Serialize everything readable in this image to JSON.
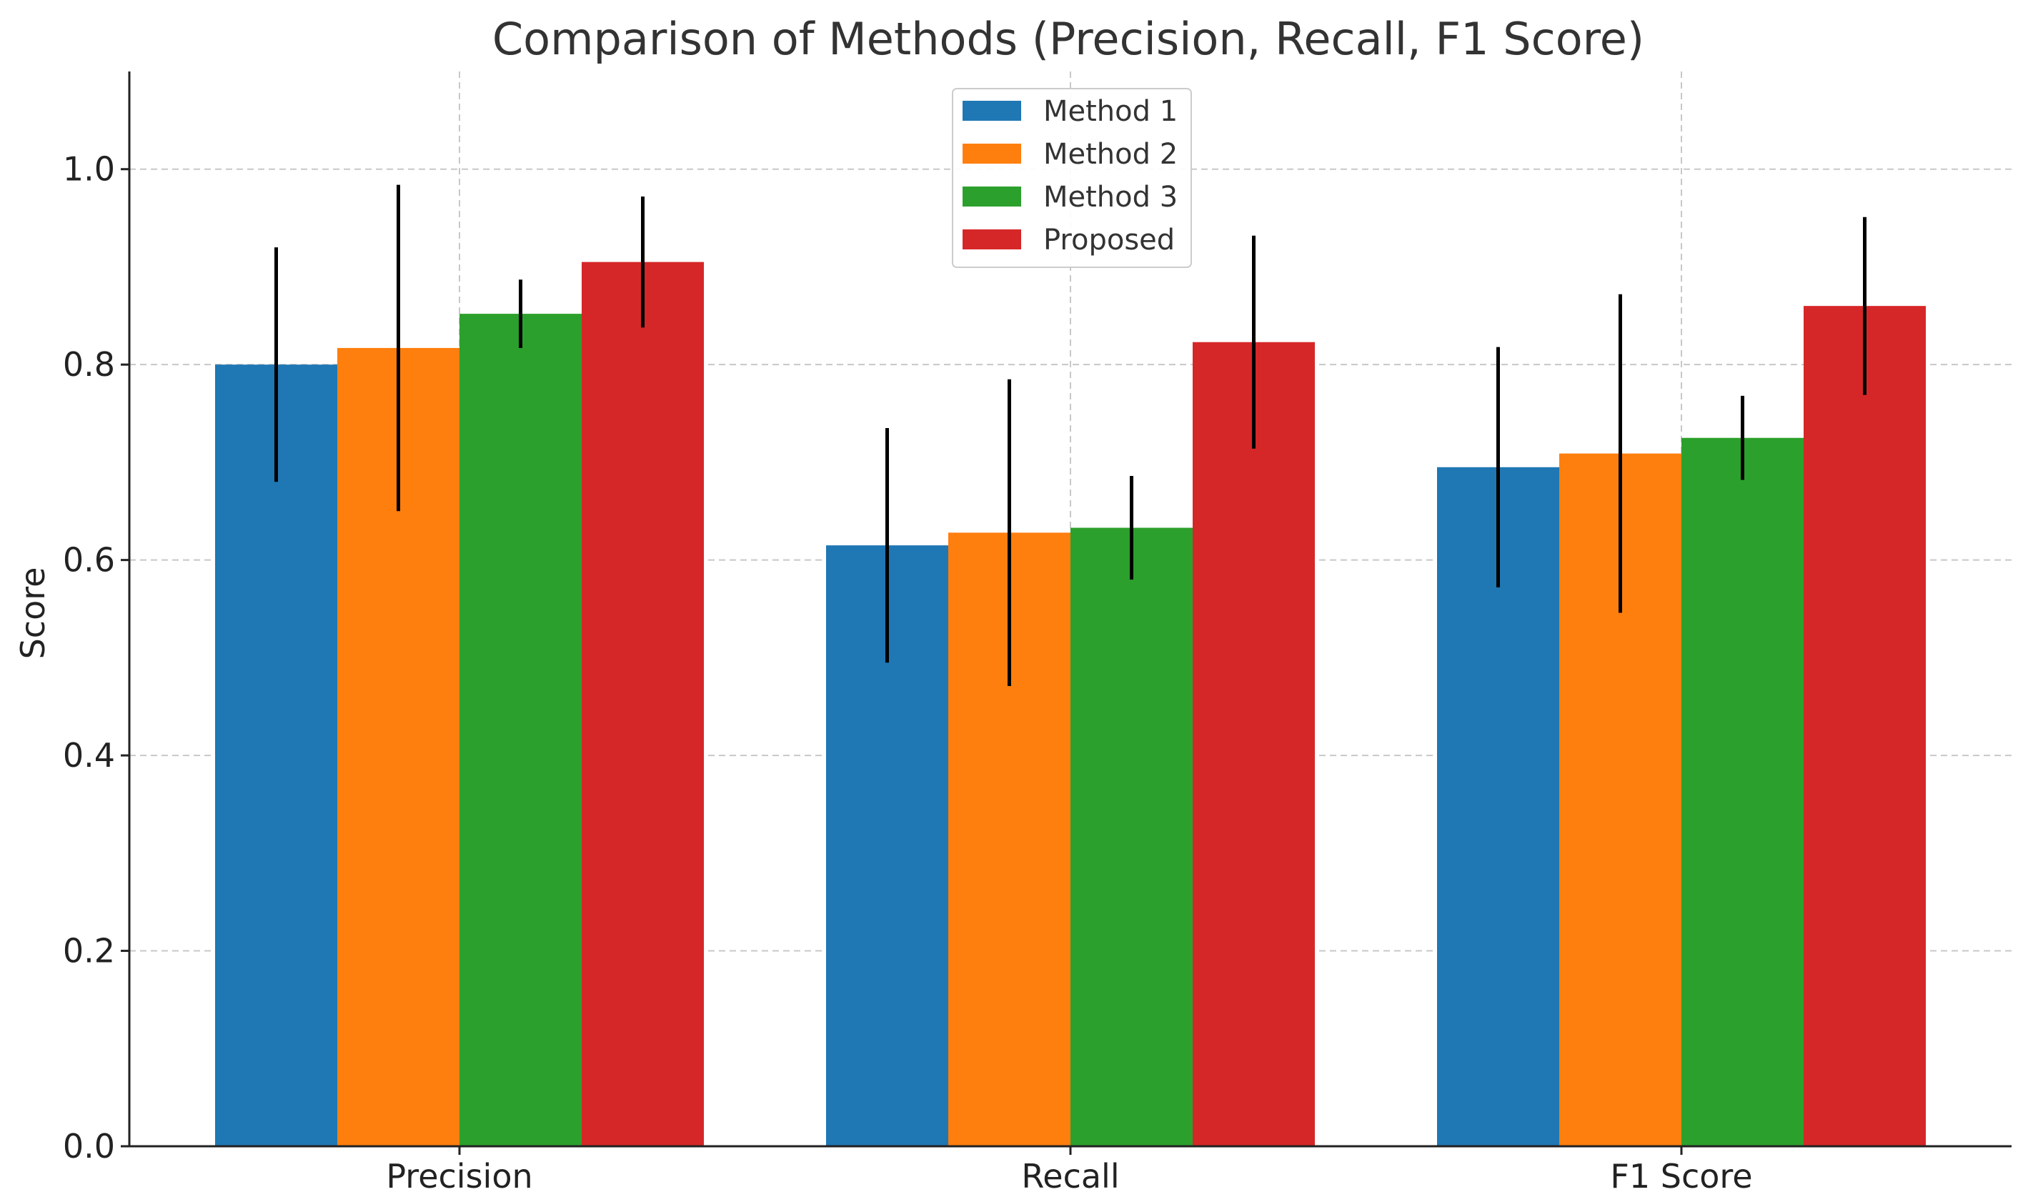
{
  "chart_data": {
    "type": "bar",
    "title": "Comparison of Methods (Precision, Recall, F1 Score)",
    "xlabel": "",
    "ylabel": "Score",
    "ylim": [
      0,
      1.1
    ],
    "yticks": [
      0.0,
      0.2,
      0.4,
      0.6,
      0.8,
      1.0
    ],
    "ytick_labels": [
      "0.0",
      "0.2",
      "0.4",
      "0.6",
      "0.8",
      "1.0"
    ],
    "grid": true,
    "legend_position": "top-center",
    "categories": [
      "Precision",
      "Recall",
      "F1 Score"
    ],
    "series": [
      {
        "name": "Method 1",
        "color": "#1f77b4",
        "values": [
          0.8,
          0.615,
          0.695
        ],
        "errors": [
          0.12,
          0.12,
          0.123
        ]
      },
      {
        "name": "Method 2",
        "color": "#ff7f0e",
        "values": [
          0.817,
          0.628,
          0.709
        ],
        "errors": [
          0.167,
          0.157,
          0.163
        ]
      },
      {
        "name": "Method 3",
        "color": "#2ca02c",
        "values": [
          0.852,
          0.633,
          0.725
        ],
        "errors": [
          0.035,
          0.053,
          0.043
        ]
      },
      {
        "name": "Proposed",
        "color": "#d62728",
        "values": [
          0.905,
          0.823,
          0.86
        ],
        "errors": [
          0.067,
          0.109,
          0.091
        ]
      }
    ]
  }
}
